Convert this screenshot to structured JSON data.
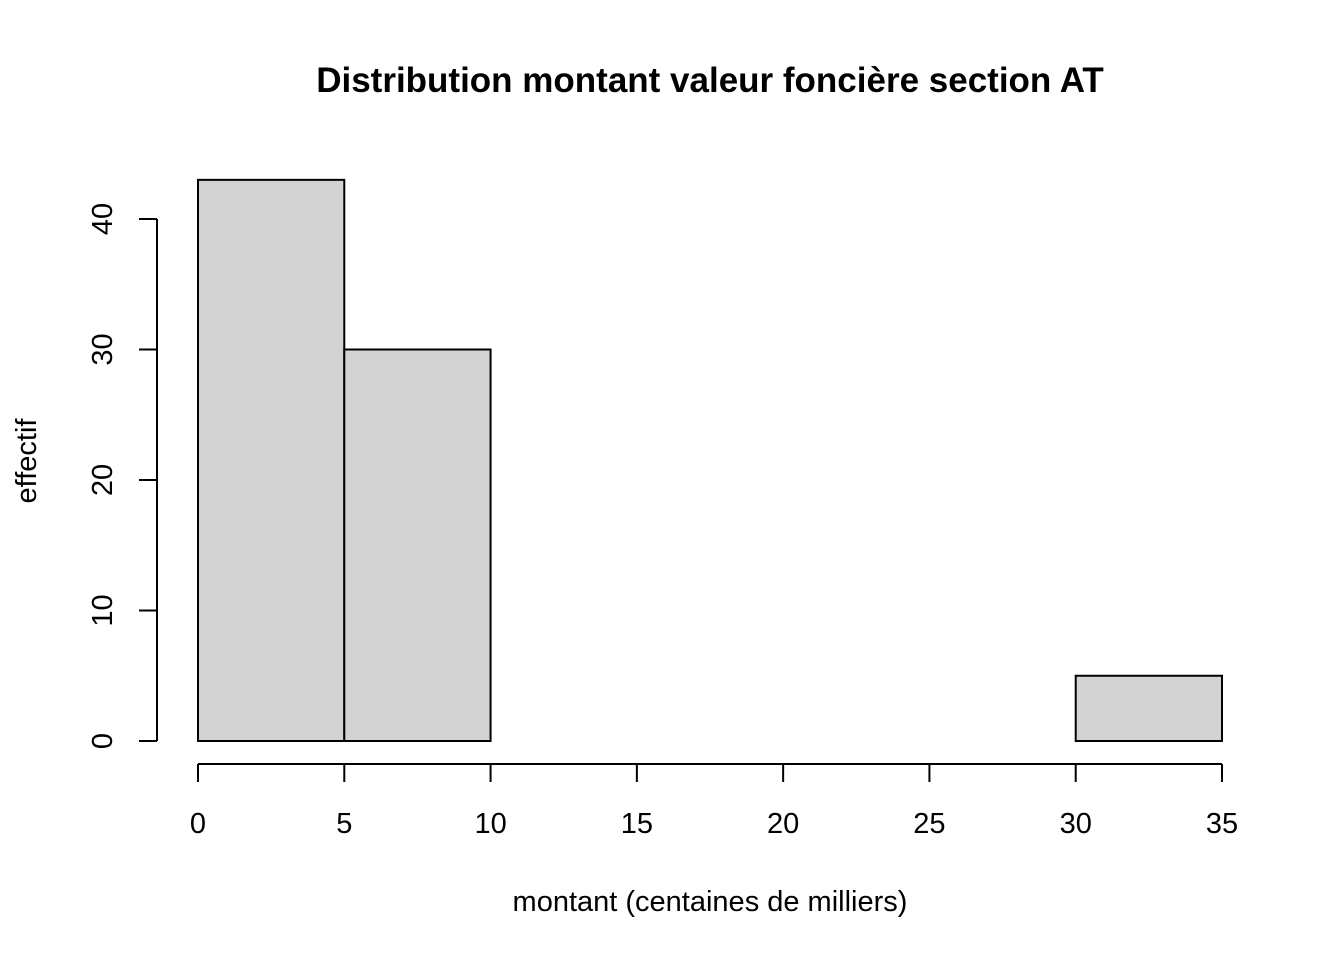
{
  "chart_data": {
    "type": "bar",
    "title": "Distribution montant valeur foncière section AT",
    "xlabel": "montant (centaines de milliers)",
    "ylabel": "effectif",
    "bins": [
      {
        "start": 0,
        "end": 5,
        "count": 43
      },
      {
        "start": 5,
        "end": 10,
        "count": 30
      },
      {
        "start": 10,
        "end": 15,
        "count": 0
      },
      {
        "start": 15,
        "end": 20,
        "count": 0
      },
      {
        "start": 20,
        "end": 25,
        "count": 0
      },
      {
        "start": 25,
        "end": 30,
        "count": 0
      },
      {
        "start": 30,
        "end": 35,
        "count": 5
      }
    ],
    "x_ticks": [
      0,
      5,
      10,
      15,
      20,
      25,
      30,
      35
    ],
    "y_ticks": [
      0,
      10,
      20,
      30,
      40
    ],
    "xlim": [
      0,
      35
    ],
    "ylim": [
      0,
      43
    ],
    "grid": false,
    "bar_color": "#d3d3d3",
    "edge_color": "#000000"
  }
}
